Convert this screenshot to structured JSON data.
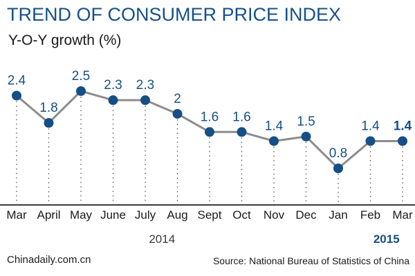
{
  "header": {
    "title": "TREND OF CONSUMER PRICE INDEX",
    "subtitle": "Y-O-Y growth (%)"
  },
  "footer": {
    "credit": "Chinadaily.com.cn",
    "source": "Source: National Bureau of Statistics of China"
  },
  "colors": {
    "title": "#15508a",
    "line": "#8c8c8c",
    "marker": "#164f86",
    "label": "#164f86",
    "axis": "#3a3a3a"
  },
  "chart_data": {
    "type": "line",
    "title": "TREND OF CONSUMER PRICE INDEX",
    "ylabel": "Y-O-Y growth (%)",
    "categories": [
      "Mar",
      "April",
      "May",
      "June",
      "July",
      "Aug",
      "Sept",
      "Oct",
      "Nov",
      "Dec",
      "Jan",
      "Feb",
      "Mar"
    ],
    "values": [
      2.4,
      1.8,
      2.5,
      2.3,
      2.3,
      2,
      1.6,
      1.6,
      1.4,
      1.5,
      0.8,
      1.4,
      1.4
    ],
    "value_labels": [
      "2.4",
      "1.8",
      "2.5",
      "2.3",
      "2.3",
      "2",
      "1.6",
      "1.6",
      "1.4",
      "1.5",
      "0.8",
      "1.4",
      "1.4"
    ],
    "year_groups": [
      {
        "label": "2014",
        "bold": false
      },
      {
        "label": "2015",
        "bold": true
      }
    ],
    "ylim": [
      0.8,
      2.5
    ],
    "grid": false,
    "drop_lines": "dotted"
  }
}
